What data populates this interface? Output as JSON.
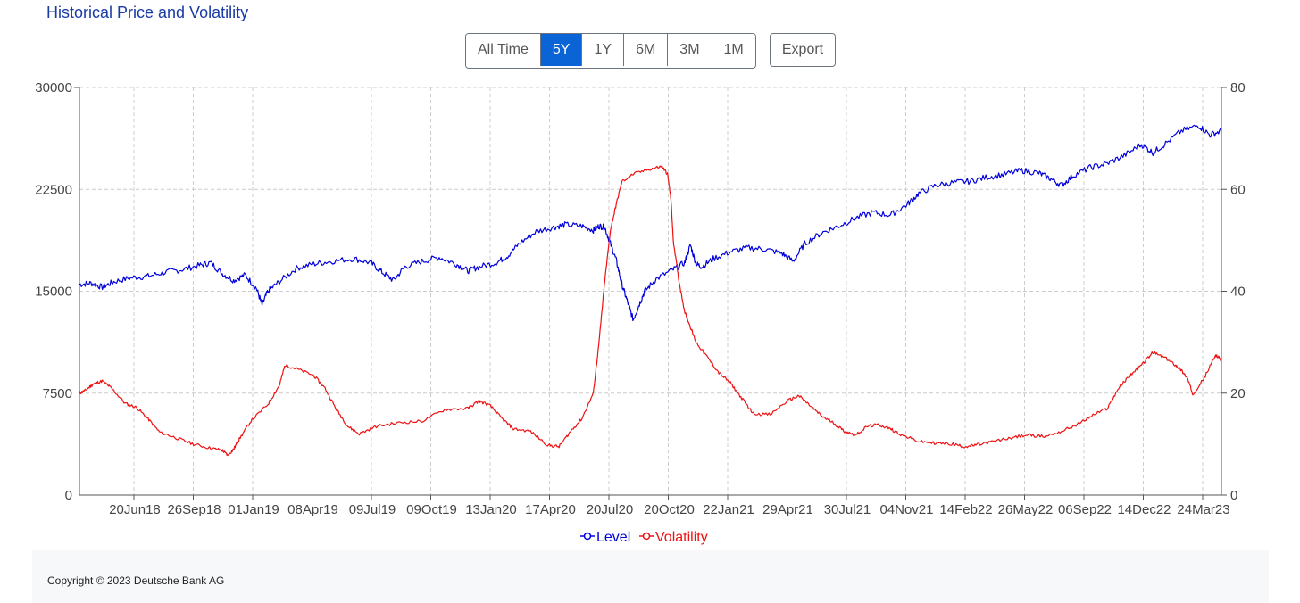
{
  "page": {
    "title": "Historical Price and Volatility",
    "range_buttons": [
      {
        "label": "All Time",
        "active": false
      },
      {
        "label": "5Y",
        "active": true
      },
      {
        "label": "1Y",
        "active": false
      },
      {
        "label": "6M",
        "active": false
      },
      {
        "label": "3M",
        "active": false
      },
      {
        "label": "1M",
        "active": false
      }
    ],
    "export_label": "Export",
    "footer": "Copyright © 2023 Deutsche Bank AG"
  },
  "colors": {
    "level": "#0000dd",
    "volatility": "#ee1111",
    "accent": "#0b64d6",
    "title": "#1a3ba6"
  },
  "chart_data": {
    "type": "line",
    "grid": true,
    "legend_position": "bottom-center",
    "x_tick_labels": [
      "20Jun18",
      "26Sep18",
      "01Jan19",
      "08Apr19",
      "09Jul19",
      "09Oct19",
      "13Jan20",
      "17Apr20",
      "20Jul20",
      "20Oct20",
      "22Jan21",
      "29Apr21",
      "30Jul21",
      "04Nov21",
      "14Feb22",
      "26May22",
      "06Sep22",
      "14Dec22",
      "24Mar23"
    ],
    "x_tick_index": [
      0.12,
      0.27,
      0.4,
      0.53,
      0.66,
      0.79,
      0.92,
      1.07,
      1.2,
      1.33,
      1.46,
      1.6,
      1.73,
      1.87,
      2.01,
      2.15,
      2.29,
      2.43,
      2.57
    ],
    "y_left": {
      "ticks": [
        "0",
        "7500",
        "15000",
        "22500",
        "30000"
      ],
      "range": [
        0,
        30000
      ]
    },
    "y_right": {
      "ticks": [
        "0",
        "20",
        "40",
        "60",
        "80"
      ],
      "range": [
        0,
        80
      ]
    },
    "x_range": [
      0,
      1
    ],
    "series": [
      {
        "name": "Level",
        "axis": "left",
        "points": [
          [
            0.0,
            15500
          ],
          [
            0.01,
            15600
          ],
          [
            0.02,
            15300
          ],
          [
            0.03,
            15700
          ],
          [
            0.045,
            16000
          ],
          [
            0.06,
            16100
          ],
          [
            0.075,
            16400
          ],
          [
            0.09,
            16600
          ],
          [
            0.105,
            16900
          ],
          [
            0.115,
            17100
          ],
          [
            0.125,
            16300
          ],
          [
            0.135,
            15800
          ],
          [
            0.145,
            16200
          ],
          [
            0.155,
            15200
          ],
          [
            0.16,
            14000
          ],
          [
            0.165,
            15000
          ],
          [
            0.175,
            15700
          ],
          [
            0.19,
            16700
          ],
          [
            0.205,
            17000
          ],
          [
            0.22,
            17200
          ],
          [
            0.24,
            17400
          ],
          [
            0.255,
            17100
          ],
          [
            0.265,
            16400
          ],
          [
            0.275,
            15800
          ],
          [
            0.285,
            16800
          ],
          [
            0.3,
            17200
          ],
          [
            0.315,
            17500
          ],
          [
            0.33,
            17000
          ],
          [
            0.34,
            16500
          ],
          [
            0.35,
            16800
          ],
          [
            0.365,
            17100
          ],
          [
            0.375,
            17600
          ],
          [
            0.385,
            18500
          ],
          [
            0.4,
            19400
          ],
          [
            0.415,
            19700
          ],
          [
            0.425,
            19900
          ],
          [
            0.44,
            19800
          ],
          [
            0.45,
            19500
          ],
          [
            0.455,
            19800
          ],
          [
            0.46,
            19700
          ],
          [
            0.465,
            18500
          ],
          [
            0.47,
            17300
          ],
          [
            0.475,
            15500
          ],
          [
            0.48,
            14200
          ],
          [
            0.485,
            12900
          ],
          [
            0.49,
            14000
          ],
          [
            0.495,
            15000
          ],
          [
            0.505,
            15900
          ],
          [
            0.52,
            16600
          ],
          [
            0.53,
            17100
          ],
          [
            0.535,
            18400
          ],
          [
            0.54,
            17000
          ],
          [
            0.545,
            16800
          ],
          [
            0.555,
            17400
          ],
          [
            0.57,
            17900
          ],
          [
            0.585,
            18200
          ],
          [
            0.6,
            18100
          ],
          [
            0.615,
            17800
          ],
          [
            0.625,
            17200
          ],
          [
            0.635,
            18500
          ],
          [
            0.65,
            19300
          ],
          [
            0.665,
            19800
          ],
          [
            0.68,
            20400
          ],
          [
            0.695,
            20800
          ],
          [
            0.71,
            20600
          ],
          [
            0.725,
            21400
          ],
          [
            0.735,
            22200
          ],
          [
            0.75,
            22800
          ],
          [
            0.765,
            23000
          ],
          [
            0.78,
            23100
          ],
          [
            0.795,
            23400
          ],
          [
            0.81,
            23600
          ],
          [
            0.825,
            23900
          ],
          [
            0.84,
            23700
          ],
          [
            0.85,
            23300
          ],
          [
            0.86,
            22800
          ],
          [
            0.87,
            23500
          ],
          [
            0.885,
            24100
          ],
          [
            0.9,
            24400
          ],
          [
            0.915,
            25000
          ],
          [
            0.93,
            25800
          ],
          [
            0.94,
            25200
          ],
          [
            0.95,
            25800
          ],
          [
            0.965,
            26800
          ],
          [
            0.98,
            27200
          ],
          [
            0.99,
            26500
          ],
          [
            1.0,
            26800
          ]
        ]
      },
      {
        "name": "Volatility",
        "axis": "right",
        "points": [
          [
            0.0,
            20.0
          ],
          [
            0.005,
            20.5
          ],
          [
            0.012,
            21.8
          ],
          [
            0.02,
            22.4
          ],
          [
            0.028,
            21.0
          ],
          [
            0.04,
            18.0
          ],
          [
            0.05,
            17.2
          ],
          [
            0.06,
            15.0
          ],
          [
            0.07,
            12.4
          ],
          [
            0.085,
            11.2
          ],
          [
            0.1,
            10.0
          ],
          [
            0.115,
            9.2
          ],
          [
            0.125,
            8.8
          ],
          [
            0.13,
            7.8
          ],
          [
            0.135,
            9.0
          ],
          [
            0.14,
            11.0
          ],
          [
            0.15,
            14.5
          ],
          [
            0.165,
            17.8
          ],
          [
            0.175,
            21.5
          ],
          [
            0.18,
            25.5
          ],
          [
            0.19,
            24.8
          ],
          [
            0.205,
            23.5
          ],
          [
            0.215,
            21.0
          ],
          [
            0.225,
            16.8
          ],
          [
            0.235,
            13.5
          ],
          [
            0.245,
            12.0
          ],
          [
            0.26,
            13.5
          ],
          [
            0.28,
            14.2
          ],
          [
            0.3,
            14.5
          ],
          [
            0.32,
            16.8
          ],
          [
            0.34,
            17.0
          ],
          [
            0.35,
            18.5
          ],
          [
            0.36,
            17.5
          ],
          [
            0.37,
            15.0
          ],
          [
            0.38,
            13.0
          ],
          [
            0.395,
            12.5
          ],
          [
            0.41,
            9.8
          ],
          [
            0.42,
            9.5
          ],
          [
            0.43,
            12.5
          ],
          [
            0.44,
            15.0
          ],
          [
            0.45,
            20.0
          ],
          [
            0.455,
            30.0
          ],
          [
            0.46,
            42.0
          ],
          [
            0.465,
            52.0
          ],
          [
            0.47,
            57.0
          ],
          [
            0.475,
            61.5
          ],
          [
            0.485,
            63.0
          ],
          [
            0.5,
            64.0
          ],
          [
            0.51,
            64.5
          ],
          [
            0.515,
            63.0
          ],
          [
            0.518,
            58.0
          ],
          [
            0.52,
            50.0
          ],
          [
            0.525,
            42.0
          ],
          [
            0.53,
            36.0
          ],
          [
            0.535,
            33.0
          ],
          [
            0.54,
            30.0
          ],
          [
            0.55,
            27.0
          ],
          [
            0.56,
            24.0
          ],
          [
            0.57,
            22.0
          ],
          [
            0.58,
            19.0
          ],
          [
            0.59,
            16.0
          ],
          [
            0.605,
            15.8
          ],
          [
            0.62,
            18.5
          ],
          [
            0.63,
            19.5
          ],
          [
            0.64,
            17.5
          ],
          [
            0.65,
            15.5
          ],
          [
            0.66,
            14.2
          ],
          [
            0.67,
            12.5
          ],
          [
            0.68,
            11.8
          ],
          [
            0.69,
            13.5
          ],
          [
            0.7,
            13.8
          ],
          [
            0.71,
            13.0
          ],
          [
            0.72,
            11.8
          ],
          [
            0.735,
            10.5
          ],
          [
            0.75,
            10.2
          ],
          [
            0.765,
            10.0
          ],
          [
            0.775,
            9.5
          ],
          [
            0.785,
            9.8
          ],
          [
            0.8,
            10.5
          ],
          [
            0.815,
            11.2
          ],
          [
            0.83,
            11.8
          ],
          [
            0.845,
            11.5
          ],
          [
            0.86,
            12.5
          ],
          [
            0.875,
            14.0
          ],
          [
            0.89,
            16.0
          ],
          [
            0.9,
            17.0
          ],
          [
            0.91,
            21.0
          ],
          [
            0.92,
            23.5
          ],
          [
            0.93,
            25.5
          ],
          [
            0.94,
            28.0
          ],
          [
            0.95,
            27.0
          ],
          [
            0.96,
            25.5
          ],
          [
            0.965,
            24.5
          ],
          [
            0.97,
            23.0
          ],
          [
            0.975,
            19.8
          ],
          [
            0.985,
            23.0
          ],
          [
            0.995,
            27.5
          ],
          [
            1.0,
            26.5
          ]
        ]
      }
    ]
  }
}
